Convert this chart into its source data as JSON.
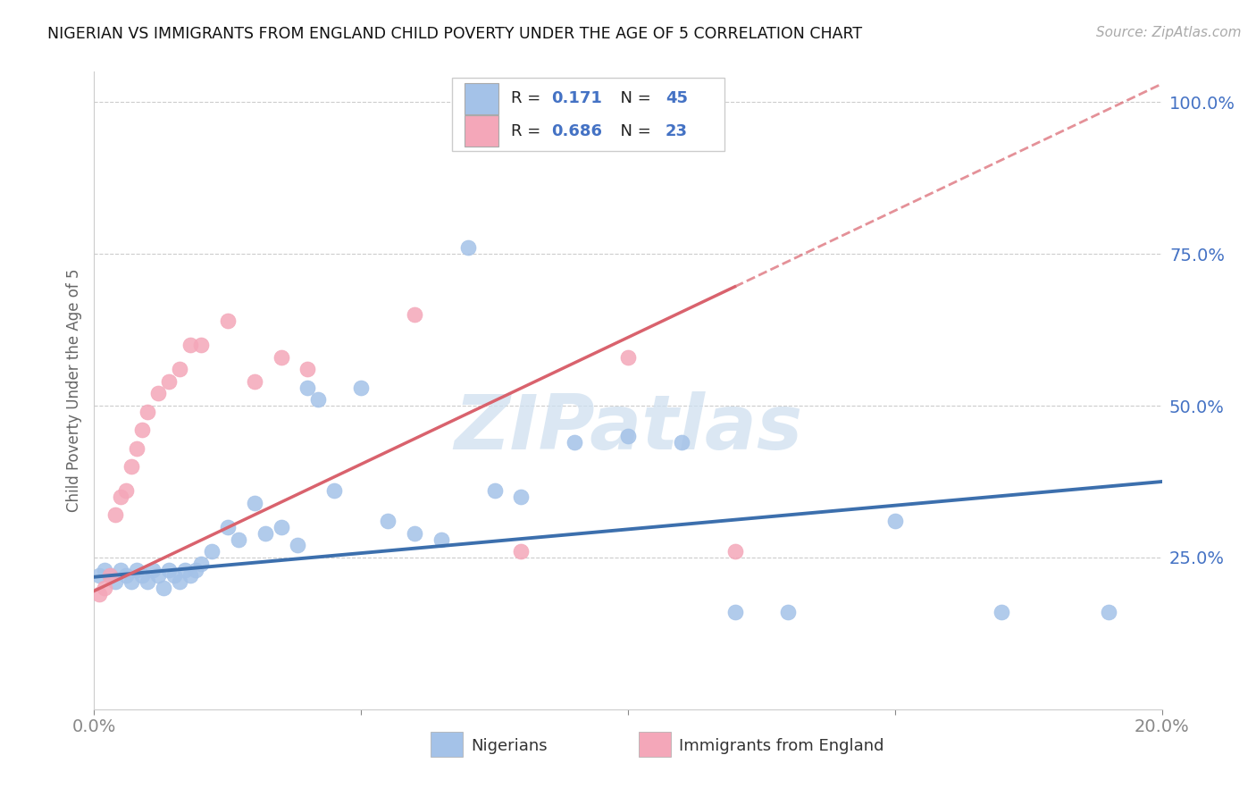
{
  "title": "NIGERIAN VS IMMIGRANTS FROM ENGLAND CHILD POVERTY UNDER THE AGE OF 5 CORRELATION CHART",
  "source": "Source: ZipAtlas.com",
  "ylabel": "Child Poverty Under the Age of 5",
  "legend_label1": "Nigerians",
  "legend_label2": "Immigrants from England",
  "r1": 0.171,
  "n1": 45,
  "r2": 0.686,
  "n2": 23,
  "xmin": 0.0,
  "xmax": 0.2,
  "ymin": 0.0,
  "ymax": 1.05,
  "blue_scatter_color": "#a4c2e8",
  "pink_scatter_color": "#f4a7b9",
  "blue_line_color": "#3c6fad",
  "pink_line_color": "#d9626d",
  "watermark_color": "#cfe0f0",
  "grid_color": "#cccccc",
  "tick_color": "#4472c4",
  "legend_r_color": "#222222",
  "legend_num_color": "#4472c4",
  "nigerians_x": [
    0.001,
    0.002,
    0.003,
    0.004,
    0.005,
    0.006,
    0.007,
    0.008,
    0.009,
    0.01,
    0.011,
    0.012,
    0.013,
    0.014,
    0.015,
    0.016,
    0.017,
    0.018,
    0.019,
    0.02,
    0.022,
    0.025,
    0.027,
    0.03,
    0.032,
    0.035,
    0.038,
    0.04,
    0.042,
    0.045,
    0.05,
    0.055,
    0.06,
    0.065,
    0.07,
    0.075,
    0.08,
    0.09,
    0.1,
    0.11,
    0.12,
    0.13,
    0.15,
    0.17,
    0.19
  ],
  "nigerians_y": [
    0.22,
    0.23,
    0.22,
    0.21,
    0.23,
    0.22,
    0.21,
    0.23,
    0.22,
    0.21,
    0.23,
    0.22,
    0.2,
    0.23,
    0.22,
    0.21,
    0.23,
    0.22,
    0.23,
    0.24,
    0.26,
    0.3,
    0.28,
    0.34,
    0.29,
    0.3,
    0.27,
    0.53,
    0.51,
    0.36,
    0.53,
    0.31,
    0.29,
    0.28,
    0.76,
    0.36,
    0.35,
    0.44,
    0.45,
    0.44,
    0.16,
    0.16,
    0.31,
    0.16,
    0.16
  ],
  "england_x": [
    0.001,
    0.002,
    0.003,
    0.004,
    0.005,
    0.006,
    0.007,
    0.008,
    0.009,
    0.01,
    0.012,
    0.014,
    0.016,
    0.018,
    0.02,
    0.025,
    0.03,
    0.035,
    0.04,
    0.06,
    0.08,
    0.1,
    0.12
  ],
  "england_y": [
    0.19,
    0.2,
    0.22,
    0.32,
    0.35,
    0.36,
    0.4,
    0.43,
    0.46,
    0.49,
    0.52,
    0.54,
    0.56,
    0.6,
    0.6,
    0.64,
    0.54,
    0.58,
    0.56,
    0.65,
    0.26,
    0.58,
    0.26
  ],
  "eng_line_x0": 0.0,
  "eng_line_y0": 0.195,
  "eng_line_x1": 0.2,
  "eng_line_y1": 1.03,
  "nig_line_x0": 0.0,
  "nig_line_y0": 0.218,
  "nig_line_x1": 0.2,
  "nig_line_y1": 0.375
}
